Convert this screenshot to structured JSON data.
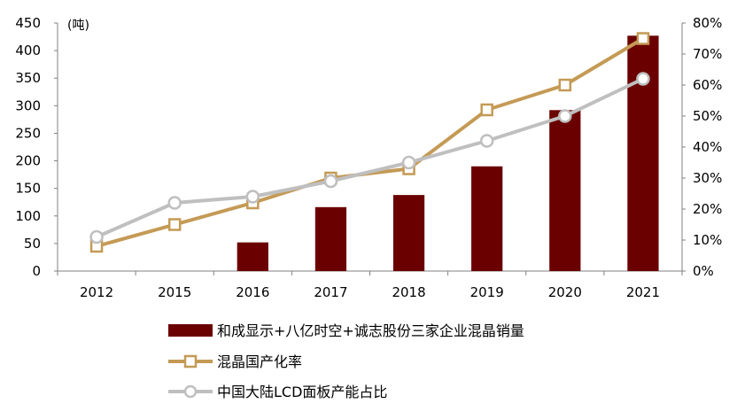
{
  "chart_data": {
    "type": "bar",
    "unit_label": "(吨)",
    "categories": [
      "2012",
      "2015",
      "2016",
      "2017",
      "2018",
      "2019",
      "2020",
      "2021"
    ],
    "y_left": {
      "ticks": [
        "0",
        "50",
        "100",
        "150",
        "200",
        "250",
        "300",
        "350",
        "400",
        "450"
      ],
      "ylim": [
        0,
        450
      ]
    },
    "y_right": {
      "ticks": [
        "0%",
        "10%",
        "20%",
        "30%",
        "40%",
        "50%",
        "60%",
        "70%",
        "80%"
      ],
      "ylim": [
        0,
        0.8
      ]
    },
    "series": [
      {
        "name": "和成显示+八亿时空+诚志股份三家企业混晶销量",
        "type": "bar",
        "axis": "left",
        "color": "#6B0000",
        "values": [
          null,
          null,
          52,
          116,
          138,
          190,
          292,
          427
        ]
      },
      {
        "name": "混晶国产化率",
        "type": "line",
        "axis": "right",
        "color": "#C49A55",
        "marker": "square",
        "values": [
          0.08,
          0.15,
          0.22,
          0.3,
          0.33,
          0.52,
          0.6,
          0.75
        ]
      },
      {
        "name": "中国大陆LCD面板产能占比",
        "type": "line",
        "axis": "right",
        "color": "#BFBFBF",
        "marker": "circle",
        "values": [
          0.11,
          0.22,
          0.24,
          0.29,
          0.35,
          0.42,
          0.5,
          0.62
        ]
      }
    ],
    "legend_position": "bottom"
  }
}
